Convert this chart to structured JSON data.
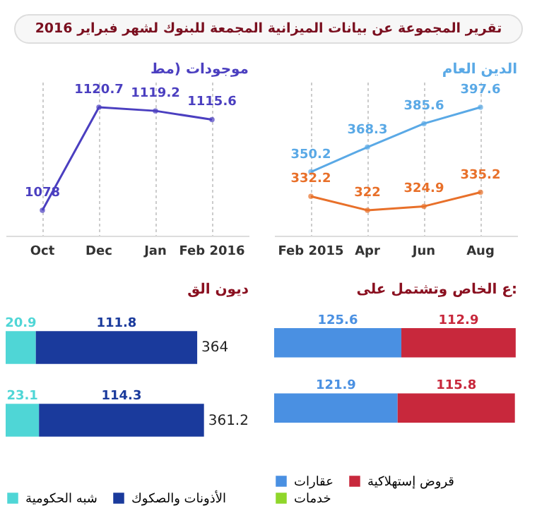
{
  "chart_data": [
    {
      "type": "other",
      "title": "تقرير المجموعة عن بيانات الميزانية المجمعة للبنوك لشهر فبراير 2016"
    },
    {
      "type": "line",
      "title": "موجودات (مط",
      "categories": [
        "Oct",
        "Dec",
        "Jan",
        "Feb 2016"
      ],
      "series": [
        {
          "color": "#4b3fc0",
          "values": [
            1078,
            1120.7,
            1119.2,
            1115.6
          ]
        }
      ],
      "data_labels": true,
      "marker": "circle",
      "grid": "x",
      "legend": false
    },
    {
      "type": "line",
      "title": "الدين العام",
      "categories": [
        "Feb 2015",
        "Apr",
        "Jun",
        "Aug"
      ],
      "series": [
        {
          "color": "#5aa9e6",
          "values": [
            350.2,
            368.3,
            385.6,
            397.6
          ]
        },
        {
          "color": "#e8702a",
          "values": [
            332.2,
            322,
            324.9,
            335.2
          ]
        }
      ],
      "data_labels": true,
      "marker": "circle",
      "grid": "x",
      "legend": false
    },
    {
      "type": "bar",
      "orientation": "horizontal",
      "stacked": true,
      "title": "ديون الق",
      "categories": [
        null,
        null
      ],
      "series": [
        {
          "name": "شبه الحكومية",
          "color": "#4fd6d6",
          "values": [
            20.9,
            23.1
          ]
        },
        {
          "name": "الأذونات والصكوك",
          "color": "#1a3a9c",
          "values": [
            111.8,
            114.3
          ]
        }
      ],
      "annotations": [
        "364",
        "361.2"
      ],
      "data_labels": true,
      "legend": "bottom"
    },
    {
      "type": "bar",
      "orientation": "horizontal",
      "stacked": true,
      "title": "ع الخاص وتشتمل على:",
      "categories": [
        null,
        null
      ],
      "series": [
        {
          "name": "عقارات",
          "color": "#4a90e2",
          "values": [
            125.6,
            121.9
          ]
        },
        {
          "name": "قروض إستهلاكية",
          "color": "#c8283c",
          "values": [
            112.9,
            115.8
          ]
        },
        {
          "name": "خدمات",
          "color": "#8fd62a",
          "values": [
            null,
            null
          ]
        }
      ],
      "data_labels": true,
      "legend": "bottom"
    }
  ]
}
